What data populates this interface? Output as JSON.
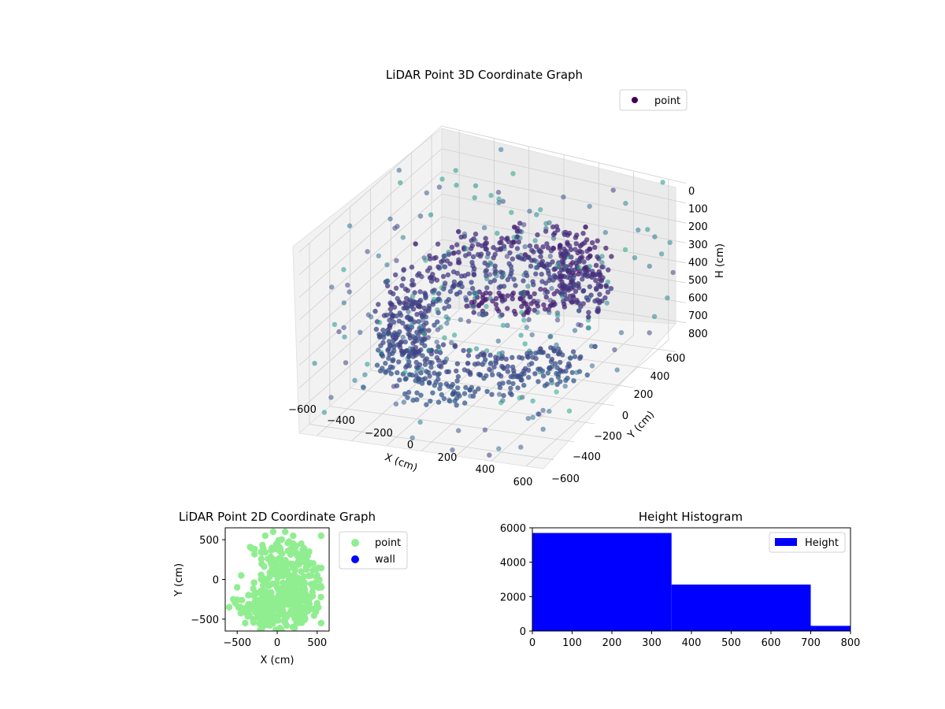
{
  "chart_data": [
    {
      "type": "scatter",
      "projection": "3d",
      "title": "LiDAR Point 3D Coordinate Graph",
      "xlabel": "X (cm)",
      "ylabel": "Y (cm)",
      "zlabel": "H (cm)",
      "xlim": [
        -700,
        700
      ],
      "ylim": [
        -700,
        700
      ],
      "zlim": [
        800,
        0
      ],
      "xticks": [
        "−600",
        "−400",
        "−200",
        "0",
        "200",
        "400",
        "600"
      ],
      "yticks": [
        "−600",
        "−400",
        "−200",
        "0",
        "200",
        "400",
        "600"
      ],
      "zticks": [
        "0",
        "100",
        "200",
        "300",
        "400",
        "500",
        "600",
        "700",
        "800"
      ],
      "legend": [
        "point"
      ],
      "legend_position": "top-right",
      "colormap": "viridis",
      "grid": true,
      "series": [
        {
          "name": "point",
          "description": "Dense spiral/ring structure of points centered near origin, radius ~300-600 cm, heights ~150-650 cm, plus sparse scattered points up to ±700 cm",
          "sample_points": [
            [
              -500,
              100,
              250
            ],
            [
              -400,
              350,
              280
            ],
            [
              -150,
              500,
              300
            ],
            [
              200,
              520,
              320
            ],
            [
              450,
              300,
              350
            ],
            [
              550,
              0,
              380
            ],
            [
              450,
              -300,
              420
            ],
            [
              150,
              -500,
              450
            ],
            [
              -200,
              -480,
              480
            ],
            [
              -450,
              -250,
              500
            ],
            [
              -520,
              50,
              520
            ],
            [
              -380,
              300,
              540
            ],
            [
              -100,
              450,
              560
            ],
            [
              250,
              420,
              580
            ],
            [
              500,
              150,
              600
            ],
            [
              0,
              200,
              200
            ],
            [
              100,
              150,
              220
            ],
            [
              -50,
              300,
              180
            ],
            [
              300,
              400,
              160
            ],
            [
              -300,
              -300,
              650
            ]
          ]
        }
      ]
    },
    {
      "type": "scatter",
      "title": "LiDAR Point 2D Coordinate Graph",
      "xlabel": "X (cm)",
      "ylabel": "Y (cm)",
      "xlim": [
        -650,
        650
      ],
      "ylim": [
        -650,
        650
      ],
      "xticks": [
        "−500",
        "0",
        "500"
      ],
      "yticks": [
        "500",
        "0",
        "−500"
      ],
      "legend": [
        "point",
        "wall"
      ],
      "legend_position": "outside-right",
      "series": [
        {
          "name": "point",
          "color": "#90ee90",
          "sample_points": [
            [
              -550,
              -250
            ],
            [
              -500,
              -100
            ],
            [
              -450,
              50
            ],
            [
              -400,
              -400
            ],
            [
              -300,
              -500
            ],
            [
              -200,
              -550
            ],
            [
              -100,
              -450
            ],
            [
              0,
              -500
            ],
            [
              100,
              -550
            ],
            [
              200,
              -450
            ],
            [
              300,
              -350
            ],
            [
              400,
              -250
            ],
            [
              450,
              -100
            ],
            [
              500,
              50
            ],
            [
              450,
              200
            ],
            [
              400,
              350
            ],
            [
              300,
              450
            ],
            [
              200,
              550
            ],
            [
              100,
              600
            ],
            [
              -50,
              600
            ],
            [
              150,
              0
            ],
            [
              0,
              -100
            ],
            [
              -100,
              -200
            ],
            [
              200,
              -200
            ],
            [
              -200,
              0
            ],
            [
              300,
              100
            ],
            [
              -300,
              -200
            ],
            [
              100,
              -300
            ],
            [
              250,
              300
            ],
            [
              350,
              -500
            ],
            [
              -600,
              -350
            ],
            [
              550,
              -550
            ],
            [
              -150,
              550
            ],
            [
              550,
              550
            ],
            [
              500,
              -300
            ],
            [
              -400,
              -550
            ]
          ]
        },
        {
          "name": "wall",
          "color": "#0000ff",
          "sample_points": []
        }
      ]
    },
    {
      "type": "bar",
      "title": "Height Histogram",
      "xlabel": "",
      "ylabel": "",
      "xlim": [
        0,
        800
      ],
      "ylim": [
        0,
        6000
      ],
      "xticks": [
        "0",
        "100",
        "200",
        "300",
        "400",
        "500",
        "600",
        "700",
        "800"
      ],
      "yticks": [
        "0",
        "2000",
        "4000",
        "6000"
      ],
      "legend": [
        "Height"
      ],
      "legend_position": "top-right",
      "series": [
        {
          "name": "Height",
          "color": "#0000ff",
          "bins": [
            [
              0,
              350
            ],
            [
              350,
              700
            ],
            [
              700,
              1050
            ]
          ],
          "values": [
            5700,
            2700,
            300
          ]
        }
      ]
    }
  ]
}
